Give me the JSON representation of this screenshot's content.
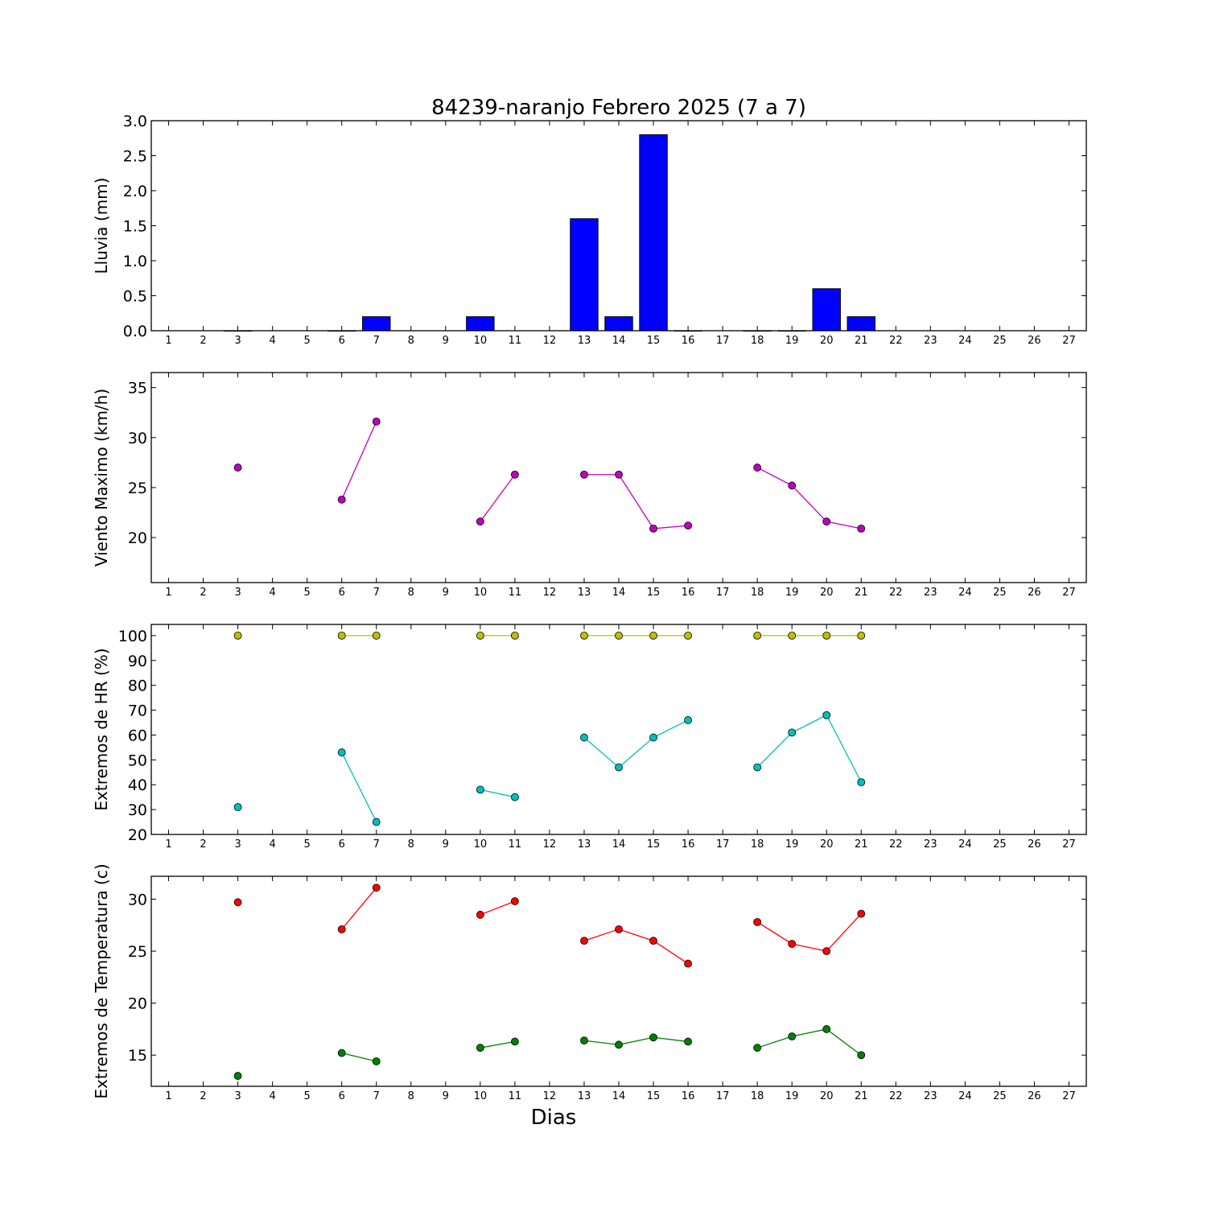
{
  "chart_data": [
    {
      "type": "bar",
      "title": "84239-naranjo Febrero 2025  (7 a 7)",
      "ylabel": "Lluvia (mm)",
      "xlim": [
        0.5,
        27.5
      ],
      "ylim": [
        0,
        3.0
      ],
      "yticks": [
        "0.0",
        "0.5",
        "1.0",
        "1.5",
        "2.0",
        "2.5",
        "3.0"
      ],
      "xticks": [
        1,
        2,
        3,
        4,
        5,
        6,
        7,
        8,
        9,
        10,
        11,
        12,
        13,
        14,
        15,
        16,
        17,
        18,
        19,
        20,
        21,
        22,
        23,
        24,
        25,
        26,
        27
      ],
      "bar_color": "#0000ff",
      "series": [
        {
          "x": [
            3,
            6,
            7,
            10,
            13,
            14,
            15,
            16,
            18,
            19,
            20,
            21
          ],
          "values": [
            0.0,
            0.0,
            0.2,
            0.2,
            1.6,
            0.2,
            2.8,
            0.0,
            0.0,
            0.0,
            0.6,
            0.2
          ]
        }
      ]
    },
    {
      "type": "line",
      "ylabel": "Viento Maximo (km/h)",
      "xlim": [
        0.5,
        27.5
      ],
      "ylim": [
        15.5,
        36.5
      ],
      "yticks": [
        "20",
        "25",
        "30",
        "35"
      ],
      "xticks": [
        1,
        2,
        3,
        4,
        5,
        6,
        7,
        8,
        9,
        10,
        11,
        12,
        13,
        14,
        15,
        16,
        17,
        18,
        19,
        20,
        21,
        22,
        23,
        24,
        25,
        26,
        27
      ],
      "series": [
        {
          "color": "#bf00bf",
          "x": [
            3,
            4,
            5,
            6,
            7,
            8,
            9,
            10,
            11,
            12,
            13,
            14,
            15,
            16,
            17,
            18,
            19,
            20,
            21
          ],
          "values": [
            27.0,
            null,
            null,
            23.8,
            31.6,
            null,
            null,
            21.6,
            26.3,
            null,
            26.3,
            26.3,
            20.9,
            21.2,
            null,
            27.0,
            25.2,
            21.6,
            20.9
          ]
        }
      ]
    },
    {
      "type": "line",
      "ylabel": "Extremos de HR (%)",
      "xlim": [
        0.5,
        27.5
      ],
      "ylim": [
        20,
        104.5
      ],
      "yticks": [
        "20",
        "30",
        "40",
        "50",
        "60",
        "70",
        "80",
        "90",
        "100"
      ],
      "xticks": [
        1,
        2,
        3,
        4,
        5,
        6,
        7,
        8,
        9,
        10,
        11,
        12,
        13,
        14,
        15,
        16,
        17,
        18,
        19,
        20,
        21,
        22,
        23,
        24,
        25,
        26,
        27
      ],
      "series": [
        {
          "color": "#bfbf00",
          "x": [
            3,
            4,
            5,
            6,
            7,
            8,
            9,
            10,
            11,
            12,
            13,
            14,
            15,
            16,
            17,
            18,
            19,
            20,
            21
          ],
          "values": [
            100,
            null,
            null,
            100,
            100,
            null,
            null,
            100,
            100,
            null,
            100,
            100,
            100,
            100,
            null,
            100,
            100,
            100,
            100
          ]
        },
        {
          "color": "#00bfbf",
          "x": [
            3,
            4,
            5,
            6,
            7,
            8,
            9,
            10,
            11,
            12,
            13,
            14,
            15,
            16,
            17,
            18,
            19,
            20,
            21
          ],
          "values": [
            31,
            null,
            null,
            53,
            25,
            null,
            null,
            38,
            35,
            null,
            59,
            47,
            59,
            66,
            null,
            47,
            61,
            68,
            41
          ]
        }
      ]
    },
    {
      "type": "line",
      "ylabel": "Extremos de Temperatura (c)",
      "xlabel": "Dias",
      "xlim": [
        0.5,
        27.5
      ],
      "ylim": [
        12,
        32.2
      ],
      "yticks": [
        "15",
        "20",
        "25",
        "30"
      ],
      "xticks": [
        1,
        2,
        3,
        4,
        5,
        6,
        7,
        8,
        9,
        10,
        11,
        12,
        13,
        14,
        15,
        16,
        17,
        18,
        19,
        20,
        21,
        22,
        23,
        24,
        25,
        26,
        27
      ],
      "series": [
        {
          "color": "#ff0000",
          "x": [
            3,
            4,
            5,
            6,
            7,
            8,
            9,
            10,
            11,
            12,
            13,
            14,
            15,
            16,
            17,
            18,
            19,
            20,
            21
          ],
          "values": [
            29.7,
            null,
            null,
            27.1,
            31.1,
            null,
            null,
            28.5,
            29.8,
            null,
            26.0,
            27.1,
            26.0,
            23.8,
            null,
            27.8,
            25.7,
            25.0,
            28.6
          ]
        },
        {
          "color": "#008000",
          "x": [
            3,
            4,
            5,
            6,
            7,
            8,
            9,
            10,
            11,
            12,
            13,
            14,
            15,
            16,
            17,
            18,
            19,
            20,
            21
          ],
          "values": [
            13.0,
            null,
            null,
            15.2,
            14.4,
            null,
            null,
            15.7,
            16.3,
            null,
            16.4,
            16.0,
            16.7,
            16.3,
            null,
            15.7,
            16.8,
            17.5,
            15.0
          ]
        }
      ]
    }
  ]
}
